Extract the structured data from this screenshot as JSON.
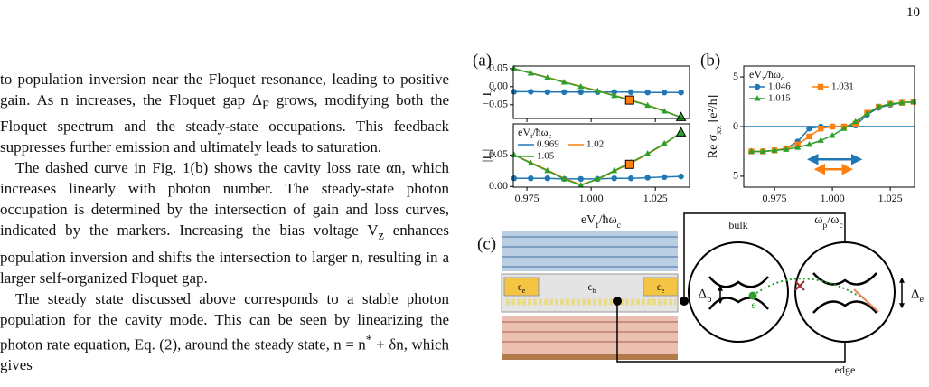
{
  "page_number": "10",
  "paragraphs": [
    "to population inversion near the Floquet resonance, leading to positive gain. As n increases, the Floquet gap Δ_F grows, modifying both the Floquet spectrum and the steady-state occupations. This feedback suppresses further emission and ultimately leads to saturation.",
    "The dashed curve in Fig. 1(b) shows the cavity loss rate αn, which increases linearly with photon number. The steady-state photon occupation is determined by the intersection of gain and loss curves, indicated by the markers. Increasing the bias voltage V_z enhances population inversion and shifts the intersection to larger n, resulting in a larger self-organized Floquet gap.",
    "The steady state discussed above corresponds to a stable photon population for the cavity mode. This can be seen by linearizing the photon rate equation, Eq. (2), around the steady state, n = n^* + δn, which gives"
  ],
  "chart_data": [
    {
      "type": "line",
      "panel_label": "(a)",
      "y_label": "I_z",
      "xlim": [
        0.9697,
        1.0383
      ],
      "ylim": [
        -0.088,
        0.057
      ],
      "xticks": [
        0.975,
        1.0,
        1.025
      ],
      "show_xtick_labels": false,
      "yticks": [
        {
          "value": 0.05,
          "label": "0.05"
        },
        {
          "value": 0,
          "label": "0.00"
        },
        {
          "value": -0.05,
          "label": "−0.05"
        }
      ],
      "x": [
        0.97,
        0.9765,
        0.983,
        0.9895,
        0.996,
        1.0025,
        1.009,
        1.0155,
        1.022,
        1.0285,
        1.035
      ],
      "series": [
        {
          "color": "#1f77b4",
          "marker": "o",
          "values": [
            -0.014,
            -0.014,
            -0.015,
            -0.015,
            -0.015,
            -0.015,
            -0.015,
            -0.015,
            -0.016,
            -0.016,
            -0.016
          ]
        },
        {
          "color": "#ff7f0e",
          "marker": null,
          "values": [
            0.05,
            0.038,
            0.026,
            0.013,
            0.001,
            -0.011,
            -0.024,
            -0.037,
            -0.051,
            -0.067,
            -0.085
          ]
        },
        {
          "color": "#2ca02c",
          "marker": "^",
          "values": [
            0.05,
            0.037,
            0.025,
            0.012,
            0.0,
            -0.012,
            -0.025,
            -0.038,
            -0.052,
            -0.068,
            -0.085
          ]
        }
      ],
      "highlights": [
        {
          "x": 1.015,
          "value": -0.037,
          "color": "#ff7f0e",
          "marker": "s"
        },
        {
          "x": 1.035,
          "value": -0.085,
          "color": "#2ca02c",
          "marker": "^"
        }
      ]
    },
    {
      "type": "line",
      "x_label": "eV_f/ħω_c",
      "y_label": "|I_z|",
      "legend_title": "eV_i/ħω_c",
      "xlim": [
        0.9697,
        1.0383
      ],
      "ylim": [
        -0.001,
        0.099
      ],
      "xticks": [
        0.975,
        {
          "value": 1.0,
          "label": "1.000"
        },
        1.025
      ],
      "yticks": [
        {
          "value": 0,
          "label": "0.00"
        },
        {
          "value": 0.05,
          "label": "0.05"
        }
      ],
      "x": [
        0.97,
        0.9765,
        0.983,
        0.9895,
        0.996,
        1.0025,
        1.009,
        1.0155,
        1.022,
        1.0285,
        1.035
      ],
      "series": [
        {
          "name": "0.969",
          "color": "#1f77b4",
          "marker": "o",
          "values": [
            0.013,
            0.013,
            0.013,
            0.012,
            0.012,
            0.012,
            0.013,
            0.013,
            0.014,
            0.015,
            0.016
          ]
        },
        {
          "name": "1.02",
          "color": "#ff7f0e",
          "marker": null,
          "values": [
            0.05,
            0.038,
            0.026,
            0.013,
            0.003,
            0.011,
            0.024,
            0.037,
            0.051,
            0.067,
            0.085
          ]
        },
        {
          "name": "1.05",
          "color": "#2ca02c",
          "marker": "^",
          "values": [
            0.05,
            0.037,
            0.025,
            0.012,
            0.002,
            0.012,
            0.025,
            0.038,
            0.052,
            0.068,
            0.085
          ]
        }
      ],
      "highlights": [
        {
          "x": 1.015,
          "value": 0.035,
          "color": "#ff7f0e",
          "marker": "s"
        },
        {
          "x": 1.035,
          "value": 0.085,
          "color": "#2ca02c",
          "marker": "^"
        }
      ]
    },
    {
      "type": "line",
      "panel_label": "(b)",
      "x_label": "ω_p/ω_c",
      "y_label": "Re σ_{xx} [e²/h]",
      "legend_title": "eV_z/ħω_c",
      "legend_markers": true,
      "xlim": [
        0.9617,
        1.0355
      ],
      "ylim": [
        -6.1,
        6.1
      ],
      "xticks": [
        0.975,
        {
          "value": 1.0,
          "label": "1.000"
        },
        1.025
      ],
      "yticks": [
        {
          "value": -5,
          "label": "−5"
        },
        0,
        5
      ],
      "reference_line": {
        "value": 0,
        "color": "#1f77b4"
      },
      "x": [
        0.965,
        0.97,
        0.975,
        0.98,
        0.985,
        0.99,
        0.995,
        1.0,
        1.005,
        1.01,
        1.015,
        1.02,
        1.025,
        1.03,
        1.035
      ],
      "series": [
        {
          "name": "1.046",
          "color": "#1f77b4",
          "marker": "o",
          "values": [
            -2.5,
            -2.5,
            -2.4,
            -2.2,
            -1.5,
            -0.2,
            0,
            0,
            0,
            0.1,
            1.2,
            1.9,
            2.2,
            2.4,
            2.5
          ]
        },
        {
          "name": "1.031",
          "color": "#ff7f0e",
          "marker": "s",
          "values": [
            -2.5,
            -2.5,
            -2.4,
            -2.2,
            -1.8,
            -1.0,
            -0.2,
            0,
            0,
            0.3,
            1.4,
            2.0,
            2.3,
            2.4,
            2.5
          ]
        },
        {
          "name": "1.015",
          "color": "#2ca02c",
          "marker": "^",
          "values": [
            -2.5,
            -2.5,
            -2.4,
            -2.3,
            -2.1,
            -1.8,
            -1.4,
            -0.9,
            -0.2,
            0.5,
            1.3,
            2.0,
            2.3,
            2.4,
            2.5
          ]
        }
      ],
      "arrows": [
        {
          "x": [
            0.99,
            1.012
          ],
          "value": -3.3,
          "color": "#1f77b4"
        },
        {
          "x": [
            0.993,
            1.008
          ],
          "value": -4.3,
          "color": "#ff7f0e"
        }
      ]
    }
  ],
  "diagram": {
    "panel_label": "(c)",
    "bulk": "bulk",
    "edge": "edge",
    "layer_labels": [
      "ϵ_e",
      "ϵ_b",
      "ϵ_e"
    ],
    "gap_bulk": "Δ_b",
    "gap_edge": "Δ_e",
    "electron": "e"
  }
}
